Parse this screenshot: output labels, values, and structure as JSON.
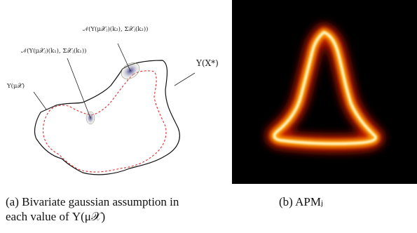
{
  "panel_a": {
    "label_k2": "𝒩(Υ(μ𝒳ⱼ)(k₂), Σ𝒳ⱼ(k₂))",
    "label_k1": "𝒩(Υ(μ𝒳ⱼ)(k₁), Σ𝒳ⱼ(k₁))",
    "label_ups_x_star": "Υ(X*)",
    "label_ups_mu": "Υ(μ𝒳)"
  },
  "captions": {
    "a_line1": "(a)  Bivariate gaussian assumption in",
    "a_line2": "each value of Υ(μ𝒳)",
    "b": "(b)  APMⱼ"
  },
  "colors": {
    "solid_contour": "#111111",
    "dashed_contour": "#e03030",
    "gaussian_fill": "#6a6aa0",
    "heatmap_bg": "#000000",
    "heatmap_hot": "#fff6c0",
    "heatmap_mid": "#ff9a00",
    "heatmap_low": "#c01800"
  }
}
